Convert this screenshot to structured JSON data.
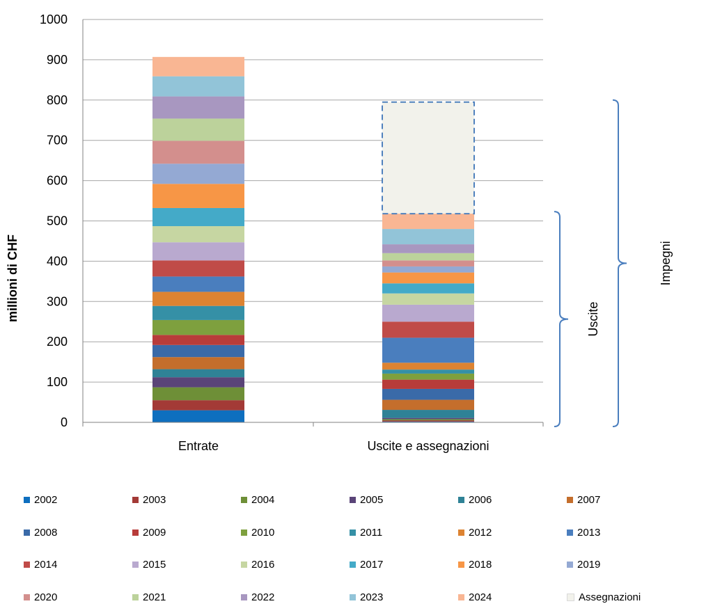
{
  "chart_data": {
    "type": "bar",
    "stacked": true,
    "categories": [
      "Entrate",
      "Uscite e assegnazioni"
    ],
    "ylabel": "millioni di CHF",
    "ylim": [
      0,
      1000
    ],
    "yticks": [
      "0",
      "100",
      "200",
      "300",
      "400",
      "500",
      "600",
      "700",
      "800",
      "900",
      "1000"
    ],
    "grid": true,
    "legend_position": "bottom",
    "series": [
      {
        "name": "2002",
        "color": "#0e6fbf",
        "values": [
          30,
          2
        ]
      },
      {
        "name": "2003",
        "color": "#a33a36",
        "values": [
          25,
          3
        ]
      },
      {
        "name": "2004",
        "color": "#6e8f37",
        "values": [
          32,
          3
        ]
      },
      {
        "name": "2005",
        "color": "#5a4478",
        "values": [
          25,
          3
        ]
      },
      {
        "name": "2006",
        "color": "#2f8296",
        "values": [
          20,
          20
        ]
      },
      {
        "name": "2007",
        "color": "#c46e2c",
        "values": [
          30,
          25
        ]
      },
      {
        "name": "2008",
        "color": "#3a6aa8",
        "values": [
          30,
          27
        ]
      },
      {
        "name": "2009",
        "color": "#b83c3a",
        "values": [
          25,
          23
        ]
      },
      {
        "name": "2010",
        "color": "#7ea03e",
        "values": [
          37,
          15
        ]
      },
      {
        "name": "2011",
        "color": "#3590a6",
        "values": [
          35,
          10
        ]
      },
      {
        "name": "2012",
        "color": "#dd8332",
        "values": [
          35,
          17
        ]
      },
      {
        "name": "2013",
        "color": "#4a7ebe",
        "values": [
          38,
          62
        ]
      },
      {
        "name": "2014",
        "color": "#c04b48",
        "values": [
          40,
          40
        ]
      },
      {
        "name": "2015",
        "color": "#b9a9cf",
        "values": [
          45,
          42
        ]
      },
      {
        "name": "2016",
        "color": "#c6d6a2",
        "values": [
          40,
          28
        ]
      },
      {
        "name": "2017",
        "color": "#44aac8",
        "values": [
          45,
          25
        ]
      },
      {
        "name": "2018",
        "color": "#f79646",
        "values": [
          60,
          27
        ]
      },
      {
        "name": "2019",
        "color": "#94a9d3",
        "values": [
          50,
          15
        ]
      },
      {
        "name": "2020",
        "color": "#d38f8d",
        "values": [
          57,
          15
        ]
      },
      {
        "name": "2021",
        "color": "#bcd29b",
        "values": [
          55,
          18
        ]
      },
      {
        "name": "2022",
        "color": "#a897c0",
        "values": [
          55,
          22
        ]
      },
      {
        "name": "2023",
        "color": "#92c4d8",
        "values": [
          50,
          38
        ]
      },
      {
        "name": "2024",
        "color": "#f9b693",
        "values": [
          48,
          38
        ]
      },
      {
        "name": "Assegnazioni",
        "color": "#f2f2eb",
        "values": [
          0,
          277
        ],
        "border": "dashed",
        "border_color": "#4f81bd"
      }
    ],
    "annotations": [
      {
        "text": "Uscite",
        "kind": "brace",
        "from": 0,
        "to": 523
      },
      {
        "text": "Impegni",
        "kind": "brace",
        "from": 0,
        "to": 800
      }
    ]
  },
  "colors": {
    "brace": "#4a7ebe",
    "grid": "#a6a6a6",
    "axis": "#808080"
  }
}
